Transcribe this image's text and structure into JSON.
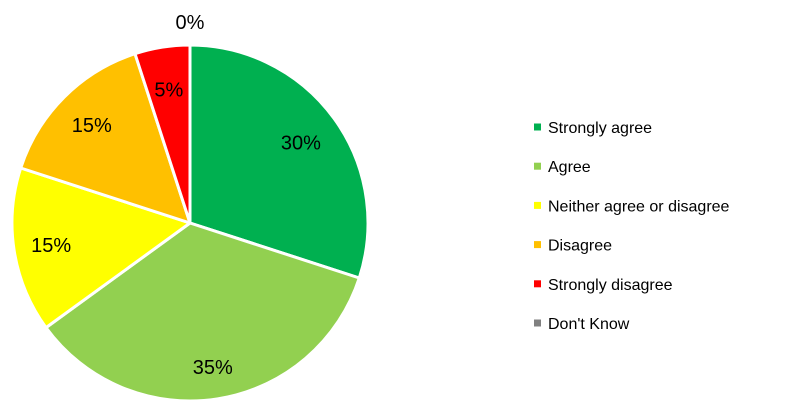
{
  "chart_data": {
    "type": "pie",
    "title": "",
    "legend_position": "right",
    "categories": [
      "Strongly agree",
      "Agree",
      "Neither agree or disagree",
      "Disagree",
      "Strongly disagree",
      "Don't Know"
    ],
    "values": [
      30,
      35,
      15,
      15,
      5,
      0
    ],
    "value_labels": [
      "30%",
      "35%",
      "15%",
      "15%",
      "5%",
      "0%"
    ],
    "colors": [
      "#00b050",
      "#92d050",
      "#ffff00",
      "#ffc000",
      "#ff0000",
      "#808080"
    ]
  }
}
